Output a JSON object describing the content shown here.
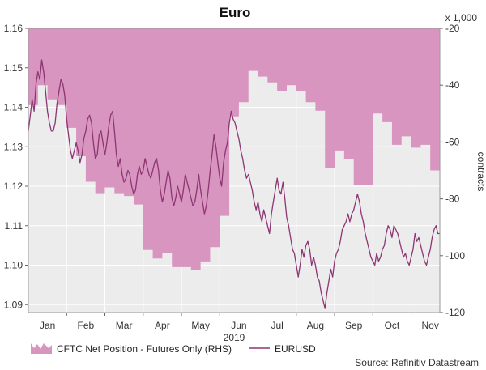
{
  "chart_data": {
    "type": "line",
    "title": "Euro",
    "x_axis": {
      "months": [
        "Jan",
        "Feb",
        "Mar",
        "Apr",
        "May",
        "Jun",
        "Jul",
        "Aug",
        "Sep",
        "Oct",
        "Nov"
      ],
      "year_label": "2019"
    },
    "y_left": {
      "ticks": [
        "1.16",
        "1.15",
        "1.14",
        "1.13",
        "1.12",
        "1.11",
        "1.10",
        "1.09"
      ],
      "min": 1.088,
      "max": 1.16
    },
    "y_right": {
      "ticks": [
        "-20",
        "-40",
        "-60",
        "-80",
        "-100",
        "-120"
      ],
      "min": -120,
      "max": -20,
      "unit": "x 1,000",
      "label": "contracts"
    },
    "colors": {
      "area_fill": "#d895bf",
      "line": "#8e3574",
      "plot_bg": "#ececec",
      "grid": "#ffffff"
    },
    "series": [
      {
        "name": "CFTC Net Position - Futures Only (RHS)",
        "type": "area",
        "axis": "right",
        "points": [
          [
            0.0,
            -47
          ],
          [
            1.0,
            -47
          ],
          [
            1.0,
            -40
          ],
          [
            2.0,
            -40
          ],
          [
            2.0,
            -45
          ],
          [
            3.0,
            -45
          ],
          [
            3.0,
            -47
          ],
          [
            4.0,
            -47
          ],
          [
            4.0,
            -55
          ],
          [
            5.0,
            -55
          ],
          [
            5.0,
            -65
          ],
          [
            6.0,
            -65
          ],
          [
            6.0,
            -74
          ],
          [
            7.0,
            -74
          ],
          [
            7.0,
            -78
          ],
          [
            8.0,
            -78
          ],
          [
            8.0,
            -76
          ],
          [
            9.0,
            -76
          ],
          [
            9.0,
            -78
          ],
          [
            10.0,
            -78
          ],
          [
            10.0,
            -79
          ],
          [
            11.0,
            -79
          ],
          [
            11.0,
            -82
          ],
          [
            12.0,
            -82
          ],
          [
            12.0,
            -98
          ],
          [
            13.0,
            -98
          ],
          [
            13.0,
            -101
          ],
          [
            14.0,
            -101
          ],
          [
            14.0,
            -99
          ],
          [
            15.0,
            -99
          ],
          [
            15.0,
            -104
          ],
          [
            17.0,
            -104
          ],
          [
            17.0,
            -105
          ],
          [
            18.0,
            -105
          ],
          [
            18.0,
            -102
          ],
          [
            19.0,
            -102
          ],
          [
            19.0,
            -97
          ],
          [
            20.0,
            -97
          ],
          [
            20.0,
            -86
          ],
          [
            21.0,
            -86
          ],
          [
            21.0,
            -51
          ],
          [
            22.0,
            -51
          ],
          [
            22.0,
            -46
          ],
          [
            23.0,
            -46
          ],
          [
            23.0,
            -35
          ],
          [
            24.0,
            -35
          ],
          [
            24.0,
            -37
          ],
          [
            25.0,
            -37
          ],
          [
            25.0,
            -39
          ],
          [
            26.0,
            -39
          ],
          [
            26.0,
            -42
          ],
          [
            27.0,
            -42
          ],
          [
            27.0,
            -40
          ],
          [
            28.0,
            -40
          ],
          [
            28.0,
            -42
          ],
          [
            29.0,
            -42
          ],
          [
            29.0,
            -46
          ],
          [
            30.0,
            -46
          ],
          [
            30.0,
            -49
          ],
          [
            31.0,
            -49
          ],
          [
            31.0,
            -69
          ],
          [
            32.0,
            -69
          ],
          [
            32.0,
            -63
          ],
          [
            33.0,
            -63
          ],
          [
            33.0,
            -66
          ],
          [
            34.0,
            -66
          ],
          [
            34.0,
            -75
          ],
          [
            36.0,
            -75
          ],
          [
            36.0,
            -50
          ],
          [
            37.0,
            -50
          ],
          [
            37.0,
            -53
          ],
          [
            38.0,
            -53
          ],
          [
            38.0,
            -61
          ],
          [
            39.0,
            -61
          ],
          [
            39.0,
            -58
          ],
          [
            40.0,
            -58
          ],
          [
            40.0,
            -62
          ],
          [
            41.0,
            -62
          ],
          [
            41.0,
            -61
          ],
          [
            42.0,
            -61
          ],
          [
            42.0,
            -70
          ],
          [
            43.0,
            -70
          ]
        ]
      },
      {
        "name": "EURUSD",
        "type": "line",
        "axis": "left",
        "points": [
          [
            0.0,
            1.134
          ],
          [
            0.2,
            1.138
          ],
          [
            0.4,
            1.142
          ],
          [
            0.6,
            1.139
          ],
          [
            0.8,
            1.146
          ],
          [
            1.0,
            1.149
          ],
          [
            1.2,
            1.147
          ],
          [
            1.4,
            1.152
          ],
          [
            1.6,
            1.149
          ],
          [
            1.8,
            1.144
          ],
          [
            2.0,
            1.139
          ],
          [
            2.2,
            1.136
          ],
          [
            2.4,
            1.134
          ],
          [
            2.6,
            1.134
          ],
          [
            2.8,
            1.136
          ],
          [
            3.0,
            1.141
          ],
          [
            3.2,
            1.144
          ],
          [
            3.4,
            1.147
          ],
          [
            3.6,
            1.146
          ],
          [
            3.8,
            1.143
          ],
          [
            4.0,
            1.137
          ],
          [
            4.2,
            1.133
          ],
          [
            4.4,
            1.129
          ],
          [
            4.6,
            1.127
          ],
          [
            4.8,
            1.129
          ],
          [
            5.0,
            1.131
          ],
          [
            5.2,
            1.129
          ],
          [
            5.4,
            1.126
          ],
          [
            5.6,
            1.128
          ],
          [
            5.8,
            1.132
          ],
          [
            6.0,
            1.134
          ],
          [
            6.2,
            1.137
          ],
          [
            6.4,
            1.138
          ],
          [
            6.6,
            1.136
          ],
          [
            6.8,
            1.131
          ],
          [
            7.0,
            1.127
          ],
          [
            7.2,
            1.128
          ],
          [
            7.4,
            1.133
          ],
          [
            7.6,
            1.134
          ],
          [
            7.8,
            1.131
          ],
          [
            8.0,
            1.128
          ],
          [
            8.2,
            1.131
          ],
          [
            8.4,
            1.135
          ],
          [
            8.6,
            1.138
          ],
          [
            8.8,
            1.139
          ],
          [
            9.0,
            1.134
          ],
          [
            9.2,
            1.128
          ],
          [
            9.4,
            1.125
          ],
          [
            9.6,
            1.127
          ],
          [
            9.8,
            1.123
          ],
          [
            10.0,
            1.121
          ],
          [
            10.2,
            1.122
          ],
          [
            10.4,
            1.124
          ],
          [
            10.6,
            1.123
          ],
          [
            10.8,
            1.12
          ],
          [
            11.0,
            1.118
          ],
          [
            11.2,
            1.119
          ],
          [
            11.4,
            1.123
          ],
          [
            11.6,
            1.125
          ],
          [
            11.8,
            1.123
          ],
          [
            12.0,
            1.124
          ],
          [
            12.2,
            1.127
          ],
          [
            12.4,
            1.125
          ],
          [
            12.6,
            1.123
          ],
          [
            12.8,
            1.122
          ],
          [
            13.0,
            1.124
          ],
          [
            13.2,
            1.126
          ],
          [
            13.4,
            1.127
          ],
          [
            13.6,
            1.124
          ],
          [
            13.8,
            1.119
          ],
          [
            14.0,
            1.116
          ],
          [
            14.2,
            1.118
          ],
          [
            14.4,
            1.121
          ],
          [
            14.6,
            1.124
          ],
          [
            14.8,
            1.122
          ],
          [
            15.0,
            1.117
          ],
          [
            15.2,
            1.115
          ],
          [
            15.4,
            1.117
          ],
          [
            15.6,
            1.12
          ],
          [
            15.8,
            1.118
          ],
          [
            16.0,
            1.116
          ],
          [
            16.2,
            1.119
          ],
          [
            16.4,
            1.123
          ],
          [
            16.6,
            1.121
          ],
          [
            16.8,
            1.119
          ],
          [
            17.0,
            1.117
          ],
          [
            17.2,
            1.115
          ],
          [
            17.4,
            1.116
          ],
          [
            17.6,
            1.119
          ],
          [
            17.8,
            1.123
          ],
          [
            18.0,
            1.119
          ],
          [
            18.2,
            1.116
          ],
          [
            18.4,
            1.113
          ],
          [
            18.6,
            1.115
          ],
          [
            18.8,
            1.119
          ],
          [
            19.0,
            1.124
          ],
          [
            19.2,
            1.128
          ],
          [
            19.4,
            1.133
          ],
          [
            19.6,
            1.13
          ],
          [
            19.8,
            1.126
          ],
          [
            20.0,
            1.122
          ],
          [
            20.2,
            1.12
          ],
          [
            20.4,
            1.126
          ],
          [
            20.6,
            1.129
          ],
          [
            20.8,
            1.131
          ],
          [
            21.0,
            1.136
          ],
          [
            21.2,
            1.139
          ],
          [
            21.4,
            1.137
          ],
          [
            21.6,
            1.136
          ],
          [
            21.8,
            1.134
          ],
          [
            22.0,
            1.132
          ],
          [
            22.2,
            1.129
          ],
          [
            22.4,
            1.127
          ],
          [
            22.6,
            1.124
          ],
          [
            22.8,
            1.122
          ],
          [
            23.0,
            1.123
          ],
          [
            23.2,
            1.121
          ],
          [
            23.4,
            1.119
          ],
          [
            23.6,
            1.116
          ],
          [
            23.8,
            1.114
          ],
          [
            24.0,
            1.116
          ],
          [
            24.2,
            1.113
          ],
          [
            24.4,
            1.111
          ],
          [
            24.6,
            1.114
          ],
          [
            24.8,
            1.112
          ],
          [
            25.0,
            1.11
          ],
          [
            25.2,
            1.108
          ],
          [
            25.4,
            1.113
          ],
          [
            25.6,
            1.116
          ],
          [
            25.8,
            1.119
          ],
          [
            26.0,
            1.122
          ],
          [
            26.2,
            1.119
          ],
          [
            26.4,
            1.118
          ],
          [
            26.6,
            1.121
          ],
          [
            26.8,
            1.117
          ],
          [
            27.0,
            1.112
          ],
          [
            27.2,
            1.11
          ],
          [
            27.4,
            1.107
          ],
          [
            27.6,
            1.104
          ],
          [
            27.8,
            1.103
          ],
          [
            28.0,
            1.1
          ],
          [
            28.2,
            1.097
          ],
          [
            28.4,
            1.1
          ],
          [
            28.6,
            1.104
          ],
          [
            28.8,
            1.102
          ],
          [
            29.0,
            1.105
          ],
          [
            29.2,
            1.106
          ],
          [
            29.4,
            1.104
          ],
          [
            29.6,
            1.1
          ],
          [
            29.8,
            1.102
          ],
          [
            30.0,
            1.1
          ],
          [
            30.2,
            1.097
          ],
          [
            30.4,
            1.096
          ],
          [
            30.6,
            1.093
          ],
          [
            30.8,
            1.091
          ],
          [
            31.0,
            1.089
          ],
          [
            31.2,
            1.093
          ],
          [
            31.4,
            1.096
          ],
          [
            31.6,
            1.099
          ],
          [
            31.8,
            1.097
          ],
          [
            32.0,
            1.101
          ],
          [
            32.2,
            1.103
          ],
          [
            32.4,
            1.104
          ],
          [
            32.6,
            1.106
          ],
          [
            32.8,
            1.109
          ],
          [
            33.0,
            1.11
          ],
          [
            33.2,
            1.111
          ],
          [
            33.4,
            1.113
          ],
          [
            33.6,
            1.111
          ],
          [
            33.8,
            1.113
          ],
          [
            34.0,
            1.114
          ],
          [
            34.2,
            1.116
          ],
          [
            34.4,
            1.118
          ],
          [
            34.6,
            1.116
          ],
          [
            34.8,
            1.113
          ],
          [
            35.0,
            1.111
          ],
          [
            35.2,
            1.108
          ],
          [
            35.4,
            1.106
          ],
          [
            35.6,
            1.104
          ],
          [
            35.8,
            1.102
          ],
          [
            36.0,
            1.101
          ],
          [
            36.2,
            1.1
          ],
          [
            36.4,
            1.103
          ],
          [
            36.6,
            1.101
          ],
          [
            36.8,
            1.102
          ],
          [
            37.0,
            1.104
          ],
          [
            37.2,
            1.105
          ],
          [
            37.4,
            1.108
          ],
          [
            37.6,
            1.11
          ],
          [
            37.8,
            1.109
          ],
          [
            38.0,
            1.107
          ],
          [
            38.2,
            1.11
          ],
          [
            38.4,
            1.109
          ],
          [
            38.6,
            1.108
          ],
          [
            38.8,
            1.106
          ],
          [
            39.0,
            1.104
          ],
          [
            39.2,
            1.102
          ],
          [
            39.4,
            1.103
          ],
          [
            39.6,
            1.101
          ],
          [
            39.8,
            1.1
          ],
          [
            40.0,
            1.102
          ],
          [
            40.2,
            1.104
          ],
          [
            40.4,
            1.108
          ],
          [
            40.6,
            1.106
          ],
          [
            40.8,
            1.107
          ],
          [
            41.0,
            1.105
          ],
          [
            41.2,
            1.103
          ],
          [
            41.4,
            1.101
          ],
          [
            41.6,
            1.1
          ],
          [
            41.8,
            1.102
          ],
          [
            42.0,
            1.104
          ],
          [
            42.2,
            1.107
          ],
          [
            42.4,
            1.109
          ],
          [
            42.6,
            1.11
          ],
          [
            42.8,
            1.108
          ],
          [
            43.0,
            1.108
          ]
        ]
      }
    ],
    "legend": {
      "area_label": "CFTC Net Position - Futures Only (RHS)",
      "line_label": "EURUSD"
    },
    "source": "Source: Refinitiv Datastream"
  }
}
